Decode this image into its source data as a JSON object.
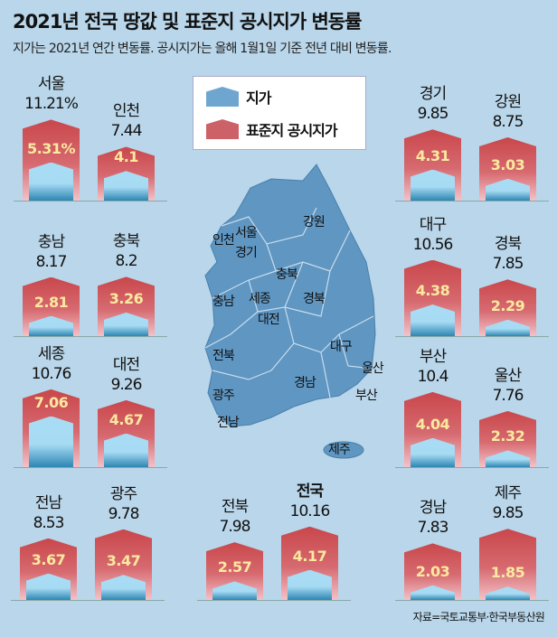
{
  "title": "2021년 전국 땅값 및 표준지 공시지가 변동률",
  "subtitle": "지가는 2021년 연간 변동률. 공시지가는 올해 1월1일 기준 전년 대비 변동률.",
  "legend": {
    "land_price": "지가",
    "standard_price": "표준지 공시지가"
  },
  "source": "자료=국토교통부·한국부동산원",
  "map_labels": [
    "서울",
    "인천",
    "경기",
    "강원",
    "충북",
    "충남",
    "세종",
    "대전",
    "경북",
    "전북",
    "대구",
    "울산",
    "경남",
    "부산",
    "광주",
    "전남",
    "제주"
  ],
  "colors": {
    "red": "#c9474b",
    "blue": "#6fa6cf",
    "background": "#b9d6ea",
    "map": "#5f96c2"
  },
  "chart_data": {
    "type": "bar",
    "title": "2021년 전국 땅갑 및 표준지 공시지가 변동률",
    "unit": "%",
    "series_names": [
      "표준지 공시지가",
      "지가"
    ],
    "regions": [
      {
        "name": "서울",
        "top": "11.21%",
        "standard_price": 11.21,
        "land_price_label": "5.31%",
        "land_price": 5.31
      },
      {
        "name": "인천",
        "top": "7.44",
        "standard_price": 7.44,
        "land_price_label": "4.1",
        "land_price": 4.1
      },
      {
        "name": "경기",
        "top": "9.85",
        "standard_price": 9.85,
        "land_price_label": "4.31",
        "land_price": 4.31
      },
      {
        "name": "강원",
        "top": "8.75",
        "standard_price": 8.75,
        "land_price_label": "3.03",
        "land_price": 3.03
      },
      {
        "name": "충남",
        "top": "8.17",
        "standard_price": 8.17,
        "land_price_label": "2.81",
        "land_price": 2.81
      },
      {
        "name": "충북",
        "top": "8.2",
        "standard_price": 8.2,
        "land_price_label": "3.26",
        "land_price": 3.26
      },
      {
        "name": "대구",
        "top": "10.56",
        "standard_price": 10.56,
        "land_price_label": "4.38",
        "land_price": 4.38
      },
      {
        "name": "경북",
        "top": "7.85",
        "standard_price": 7.85,
        "land_price_label": "2.29",
        "land_price": 2.29
      },
      {
        "name": "세종",
        "top": "10.76",
        "standard_price": 10.76,
        "land_price_label": "7.06",
        "land_price": 7.06
      },
      {
        "name": "대전",
        "top": "9.26",
        "standard_price": 9.26,
        "land_price_label": "4.67",
        "land_price": 4.67
      },
      {
        "name": "부산",
        "top": "10.4",
        "standard_price": 10.4,
        "land_price_label": "4.04",
        "land_price": 4.04
      },
      {
        "name": "울산",
        "top": "7.76",
        "standard_price": 7.76,
        "land_price_label": "2.32",
        "land_price": 2.32
      },
      {
        "name": "전남",
        "top": "8.53",
        "standard_price": 8.53,
        "land_price_label": "3.67",
        "land_price": 3.67
      },
      {
        "name": "광주",
        "top": "9.78",
        "standard_price": 9.78,
        "land_price_label": "3.47",
        "land_price": 3.47
      },
      {
        "name": "전북",
        "top": "7.98",
        "standard_price": 7.98,
        "land_price_label": "2.57",
        "land_price": 2.57
      },
      {
        "name": "전국",
        "top": "10.16",
        "standard_price": 10.16,
        "land_price_label": "4.17",
        "land_price": 4.17
      },
      {
        "name": "경남",
        "top": "7.83",
        "standard_price": 7.83,
        "land_price_label": "2.03",
        "land_price": 2.03
      },
      {
        "name": "제주",
        "top": "9.85",
        "standard_price": 9.85,
        "land_price_label": "1.85",
        "land_price": 1.85
      }
    ]
  }
}
